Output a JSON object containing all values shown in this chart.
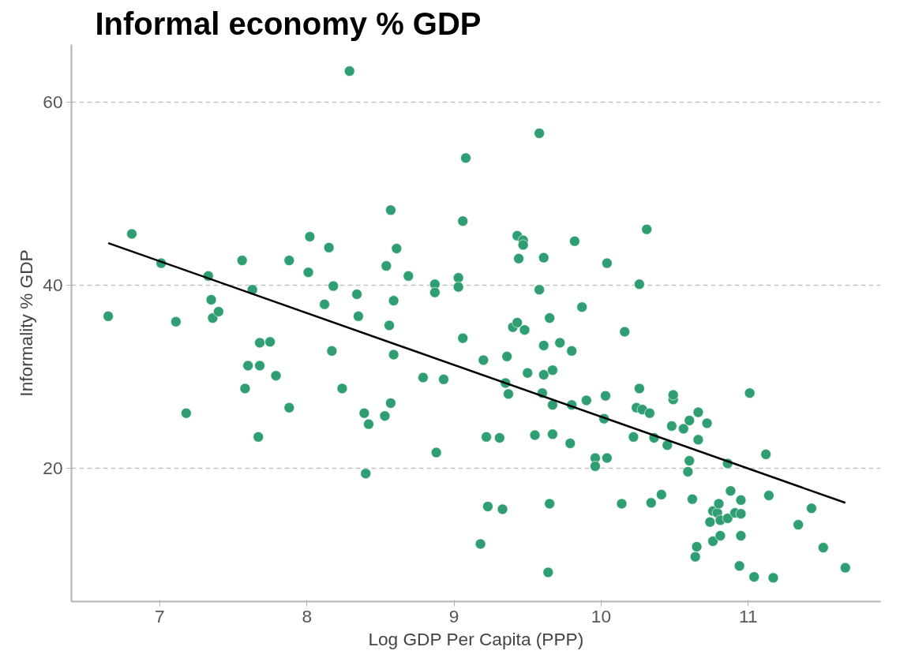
{
  "chart_data": {
    "type": "scatter",
    "title": "Informal economy % GDP",
    "xlabel": "Log GDP Per Capita (PPP)",
    "ylabel": "Informality % GDP",
    "xlim": [
      6.4,
      11.9
    ],
    "ylim": [
      5.4,
      66.3
    ],
    "xticks": [
      7,
      8,
      9,
      10,
      11
    ],
    "yticks": [
      20,
      40,
      60
    ],
    "grid": "y",
    "series": [
      {
        "marker": "circle",
        "color": "#2f9e73",
        "x": [
          6.65,
          6.81,
          7.01,
          7.11,
          7.18,
          7.33,
          7.35,
          7.36,
          7.4,
          7.56,
          7.58,
          7.6,
          7.68,
          7.75,
          7.68,
          7.67,
          7.79,
          7.63,
          7.88,
          7.88,
          8.02,
          8.01,
          8.12,
          8.15,
          8.17,
          8.18,
          8.24,
          8.29,
          8.34,
          8.35,
          8.39,
          8.4,
          8.42,
          8.53,
          8.54,
          8.57,
          8.56,
          8.57,
          8.59,
          8.59,
          8.61,
          8.69,
          8.79,
          8.87,
          8.87,
          8.88,
          8.93,
          9.03,
          9.03,
          9.06,
          9.06,
          9.08,
          9.18,
          9.2,
          9.22,
          9.23,
          9.31,
          9.33,
          9.36,
          9.35,
          9.37,
          9.4,
          9.43,
          9.43,
          9.47,
          9.47,
          9.44,
          9.48,
          9.5,
          9.58,
          9.58,
          9.61,
          9.61,
          9.61,
          9.6,
          9.65,
          9.65,
          9.64,
          9.67,
          9.67,
          9.67,
          9.55,
          9.72,
          9.79,
          9.8,
          9.8,
          9.82,
          9.87,
          9.9,
          9.96,
          9.96,
          10.02,
          10.03,
          10.04,
          10.04,
          10.14,
          10.16,
          10.22,
          10.24,
          10.26,
          10.26,
          10.28,
          10.31,
          10.33,
          10.34,
          10.36,
          10.41,
          10.45,
          10.48,
          10.49,
          10.49,
          10.56,
          10.6,
          10.6,
          10.59,
          10.62,
          10.64,
          10.65,
          10.66,
          10.66,
          10.72,
          10.74,
          10.76,
          10.76,
          10.79,
          10.8,
          10.81,
          10.81,
          10.86,
          10.86,
          10.88,
          10.91,
          10.94,
          10.95,
          10.95,
          10.95,
          11.01,
          11.04,
          11.12,
          11.14,
          11.17,
          11.34,
          11.43,
          11.51,
          11.66
        ],
        "values": [
          36.6,
          45.6,
          42.4,
          36.0,
          26.0,
          41.0,
          38.4,
          36.4,
          37.1,
          42.7,
          28.7,
          31.2,
          33.7,
          33.8,
          31.2,
          23.4,
          30.1,
          39.5,
          42.7,
          26.6,
          45.3,
          41.4,
          37.9,
          44.1,
          32.8,
          39.9,
          28.7,
          63.4,
          39.0,
          36.6,
          26.0,
          19.4,
          24.8,
          25.7,
          42.1,
          48.2,
          35.6,
          27.1,
          32.4,
          38.3,
          44.0,
          41.0,
          29.9,
          40.1,
          39.2,
          21.7,
          29.7,
          40.8,
          39.8,
          47.0,
          34.2,
          53.9,
          11.7,
          31.8,
          23.4,
          15.8,
          23.3,
          15.5,
          32.2,
          29.3,
          28.1,
          35.4,
          35.9,
          45.4,
          44.9,
          44.4,
          42.9,
          35.1,
          30.4,
          39.5,
          56.6,
          43.0,
          33.4,
          30.2,
          28.2,
          36.4,
          16.1,
          8.6,
          30.7,
          26.9,
          23.7,
          23.6,
          33.7,
          22.7,
          26.9,
          32.8,
          44.8,
          37.6,
          27.4,
          21.1,
          20.2,
          25.4,
          27.9,
          21.1,
          42.4,
          16.1,
          34.9,
          23.4,
          26.6,
          40.1,
          28.7,
          26.4,
          46.1,
          26.0,
          16.2,
          23.3,
          17.1,
          22.5,
          24.6,
          27.5,
          28.0,
          24.3,
          25.2,
          20.8,
          19.6,
          16.6,
          10.3,
          11.4,
          26.1,
          23.1,
          24.9,
          14.1,
          15.3,
          12.0,
          15.1,
          16.1,
          14.3,
          12.6,
          14.5,
          20.5,
          17.5,
          15.1,
          9.3,
          15.0,
          16.5,
          12.6,
          28.2,
          8.1,
          21.5,
          17.0,
          8.0,
          13.8,
          15.6,
          11.3,
          9.1
        ]
      },
      {
        "type": "line",
        "color": "#000000",
        "x": [
          6.65,
          11.66
        ],
        "values": [
          44.6,
          16.2
        ]
      }
    ]
  }
}
